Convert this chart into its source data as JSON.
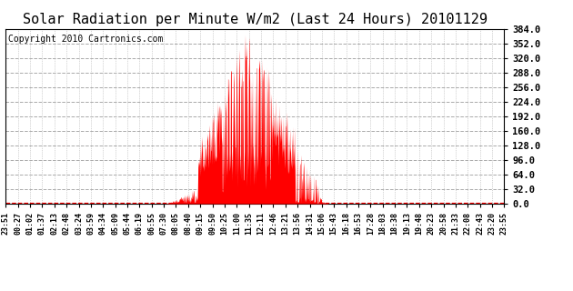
{
  "title": "Solar Radiation per Minute W/m2 (Last 24 Hours) 20101129",
  "copyright": "Copyright 2010 Cartronics.com",
  "ylim": [
    0,
    384
  ],
  "yticks": [
    0,
    32,
    64,
    96,
    128,
    160,
    192,
    224,
    256,
    288,
    320,
    352,
    384
  ],
  "fill_color": "red",
  "line_color": "red",
  "background_color": "white",
  "grid_color": "#888888",
  "title_fontsize": 11,
  "copyright_fontsize": 7,
  "x_labels": [
    "23:51",
    "00:27",
    "01:02",
    "01:37",
    "02:13",
    "02:48",
    "03:24",
    "03:59",
    "04:34",
    "05:09",
    "05:44",
    "06:19",
    "06:55",
    "07:30",
    "08:05",
    "08:40",
    "09:15",
    "09:50",
    "10:25",
    "11:00",
    "11:35",
    "12:11",
    "12:46",
    "13:21",
    "13:56",
    "14:31",
    "15:06",
    "15:43",
    "16:18",
    "16:53",
    "17:28",
    "18:03",
    "18:38",
    "19:13",
    "19:48",
    "20:23",
    "20:58",
    "21:33",
    "22:08",
    "22:43",
    "23:20",
    "23:55"
  ],
  "num_points": 1440,
  "sunrise_idx": 460,
  "sunset_idx": 930,
  "peak_idx": 770,
  "peak_val": 384
}
